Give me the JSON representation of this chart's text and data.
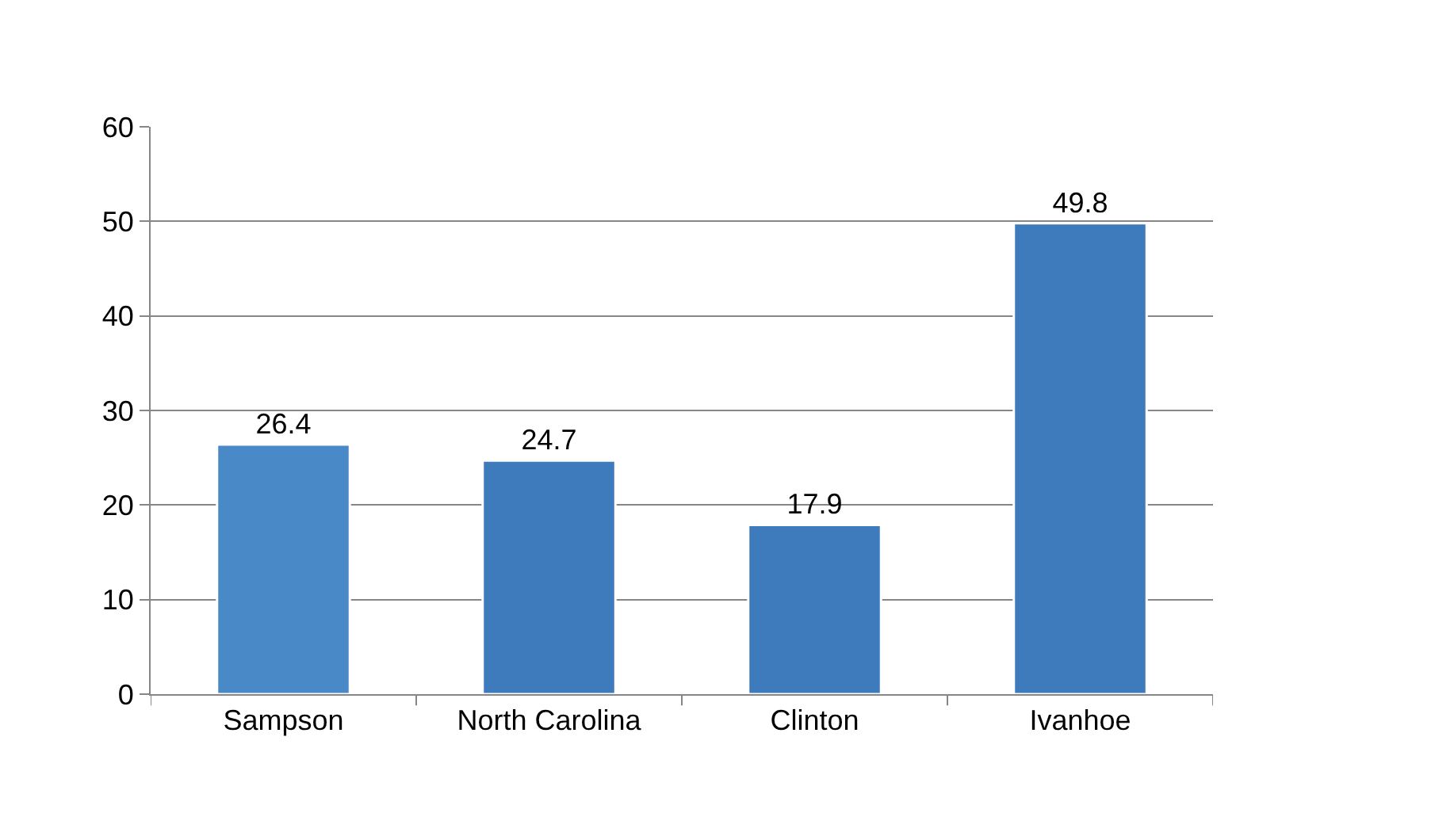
{
  "chart_data": {
    "type": "bar",
    "categories": [
      "Sampson",
      "North Carolina",
      "Clinton",
      "Ivanhoe"
    ],
    "values": [
      26.4,
      24.7,
      17.9,
      49.8
    ],
    "colors": [
      "#4a89c8",
      "#3e7bbd",
      "#3e7bbd",
      "#3e7bbd"
    ],
    "ylim": [
      0,
      60
    ],
    "yticks": [
      0,
      10,
      20,
      30,
      40,
      50,
      60
    ],
    "grid": "y",
    "data_labels": true,
    "legend": false
  }
}
